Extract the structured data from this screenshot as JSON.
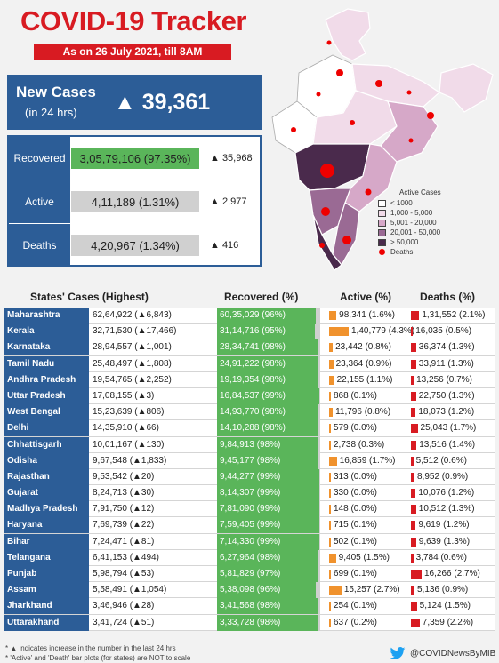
{
  "title": "COVID-19 Tracker",
  "date_band": "As on 26 July 2021, till 8AM",
  "new_cases": {
    "label": "New Cases",
    "sub": "(in 24 hrs)",
    "value": "▲ 39,361"
  },
  "stats": [
    {
      "label": "Recovered",
      "value": "3,05,79,106 (97.35%)",
      "delta": "▲ 35,968",
      "fill_pct": 97.35
    },
    {
      "label": "Active",
      "value": "4,11,189 (1.31%)",
      "delta": "▲ 2,977",
      "fill_pct": 1.31
    },
    {
      "label": "Deaths",
      "value": "4,20,967 (1.34%)",
      "delta": "▲ 416",
      "fill_pct": 1.34
    }
  ],
  "map_legend": {
    "title": "Active Cases",
    "items": [
      {
        "label": "< 1000",
        "color": "#ffffff"
      },
      {
        "label": "1,000 - 5,000",
        "color": "#f1dbe9"
      },
      {
        "label": "5,001 - 20,000",
        "color": "#d6a8c8"
      },
      {
        "label": "20,001 - 50,000",
        "color": "#9a6a94"
      },
      {
        "label": "> 50,000",
        "color": "#4a2a4c"
      }
    ],
    "deaths_label": "Deaths"
  },
  "table_headers": {
    "state": "States' Cases (Highest)",
    "recovered": "Recovered (%)",
    "active": "Active (%)",
    "deaths": "Deaths (%)"
  },
  "colors": {
    "blue": "#2c5d97",
    "red": "#d81b22",
    "green": "#5ab55a",
    "orange": "#f0922d"
  },
  "chart_data": {
    "type": "table",
    "columns": [
      "State",
      "Cases",
      "New cases (24 hrs)",
      "Recovered",
      "Recovered %",
      "Active",
      "Active %",
      "Deaths",
      "Deaths %"
    ],
    "rows": [
      {
        "state": "Maharashtra",
        "cases": "62,64,922",
        "delta": "▲6,843",
        "recovered": "60,35,029",
        "rec_pct": 96,
        "active": "98,341",
        "act_pct": 1.6,
        "deaths": "1,31,552",
        "dth_pct": 2.1
      },
      {
        "state": "Kerala",
        "cases": "32,71,530",
        "delta": "▲17,466",
        "recovered": "31,14,716",
        "rec_pct": 95,
        "active": "1,40,779",
        "act_pct": 4.3,
        "deaths": "16,035",
        "dth_pct": 0.5
      },
      {
        "state": "Karnataka",
        "cases": "28,94,557",
        "delta": "▲1,001",
        "recovered": "28,34,741",
        "rec_pct": 98,
        "active": "23,442",
        "act_pct": 0.8,
        "deaths": "36,374",
        "dth_pct": 1.3
      },
      {
        "state": "Tamil Nadu",
        "cases": "25,48,497",
        "delta": "▲1,808",
        "recovered": "24,91,222",
        "rec_pct": 98,
        "active": "23,364",
        "act_pct": 0.9,
        "deaths": "33,911",
        "dth_pct": 1.3
      },
      {
        "state": "Andhra Pradesh",
        "cases": "19,54,765",
        "delta": "▲2,252",
        "recovered": "19,19,354",
        "rec_pct": 98,
        "active": "22,155",
        "act_pct": 1.1,
        "deaths": "13,256",
        "dth_pct": 0.7
      },
      {
        "state": "Uttar Pradesh",
        "cases": "17,08,155",
        "delta": "▲3",
        "recovered": "16,84,537",
        "rec_pct": 99,
        "active": "868",
        "act_pct": 0.1,
        "deaths": "22,750",
        "dth_pct": 1.3
      },
      {
        "state": "West Bengal",
        "cases": "15,23,639",
        "delta": "▲806",
        "recovered": "14,93,770",
        "rec_pct": 98,
        "active": "11,796",
        "act_pct": 0.8,
        "deaths": "18,073",
        "dth_pct": 1.2
      },
      {
        "state": "Delhi",
        "cases": "14,35,910",
        "delta": "▲66",
        "recovered": "14,10,288",
        "rec_pct": 98,
        "active": "579",
        "act_pct": 0.0,
        "deaths": "25,043",
        "dth_pct": 1.7
      },
      {
        "state": "Chhattisgarh",
        "cases": "10,01,167",
        "delta": "▲130",
        "recovered": "9,84,913",
        "rec_pct": 98,
        "active": "2,738",
        "act_pct": 0.3,
        "deaths": "13,516",
        "dth_pct": 1.4
      },
      {
        "state": "Odisha",
        "cases": "9,67,548",
        "delta": "▲1,833",
        "recovered": "9,45,177",
        "rec_pct": 98,
        "active": "16,859",
        "act_pct": 1.7,
        "deaths": "5,512",
        "dth_pct": 0.6
      },
      {
        "state": "Rajasthan",
        "cases": "9,53,542",
        "delta": "▲20",
        "recovered": "9,44,277",
        "rec_pct": 99,
        "active": "313",
        "act_pct": 0.0,
        "deaths": "8,952",
        "dth_pct": 0.9
      },
      {
        "state": "Gujarat",
        "cases": "8,24,713",
        "delta": "▲30",
        "recovered": "8,14,307",
        "rec_pct": 99,
        "active": "330",
        "act_pct": 0.0,
        "deaths": "10,076",
        "dth_pct": 1.2
      },
      {
        "state": "Madhya Pradesh",
        "cases": "7,91,750",
        "delta": "▲12",
        "recovered": "7,81,090",
        "rec_pct": 99,
        "active": "148",
        "act_pct": 0.0,
        "deaths": "10,512",
        "dth_pct": 1.3
      },
      {
        "state": "Haryana",
        "cases": "7,69,739",
        "delta": "▲22",
        "recovered": "7,59,405",
        "rec_pct": 99,
        "active": "715",
        "act_pct": 0.1,
        "deaths": "9,619",
        "dth_pct": 1.2
      },
      {
        "state": "Bihar",
        "cases": "7,24,471",
        "delta": "▲81",
        "recovered": "7,14,330",
        "rec_pct": 99,
        "active": "502",
        "act_pct": 0.1,
        "deaths": "9,639",
        "dth_pct": 1.3
      },
      {
        "state": "Telangana",
        "cases": "6,41,153",
        "delta": "▲494",
        "recovered": "6,27,964",
        "rec_pct": 98,
        "active": "9,405",
        "act_pct": 1.5,
        "deaths": "3,784",
        "dth_pct": 0.6
      },
      {
        "state": "Punjab",
        "cases": "5,98,794",
        "delta": "▲53",
        "recovered": "5,81,829",
        "rec_pct": 97,
        "active": "699",
        "act_pct": 0.1,
        "deaths": "16,266",
        "dth_pct": 2.7
      },
      {
        "state": "Assam",
        "cases": "5,58,491",
        "delta": "▲1,054",
        "recovered": "5,38,098",
        "rec_pct": 96,
        "active": "15,257",
        "act_pct": 2.7,
        "deaths": "5,136",
        "dth_pct": 0.9
      },
      {
        "state": "Jharkhand",
        "cases": "3,46,946",
        "delta": "▲28",
        "recovered": "3,41,568",
        "rec_pct": 98,
        "active": "254",
        "act_pct": 0.1,
        "deaths": "5,124",
        "dth_pct": 1.5
      },
      {
        "state": "Uttarakhand",
        "cases": "3,41,724",
        "delta": "▲51",
        "recovered": "3,33,728",
        "rec_pct": 98,
        "active": "637",
        "act_pct": 0.2,
        "deaths": "7,359",
        "dth_pct": 2.2
      }
    ]
  },
  "footnotes": [
    "* ▲ indicates increase in the number in the last 24 hrs",
    "* 'Active' and 'Death' bar plots (for states) are NOT to scale"
  ],
  "handle": "@COVIDNewsByMIB"
}
